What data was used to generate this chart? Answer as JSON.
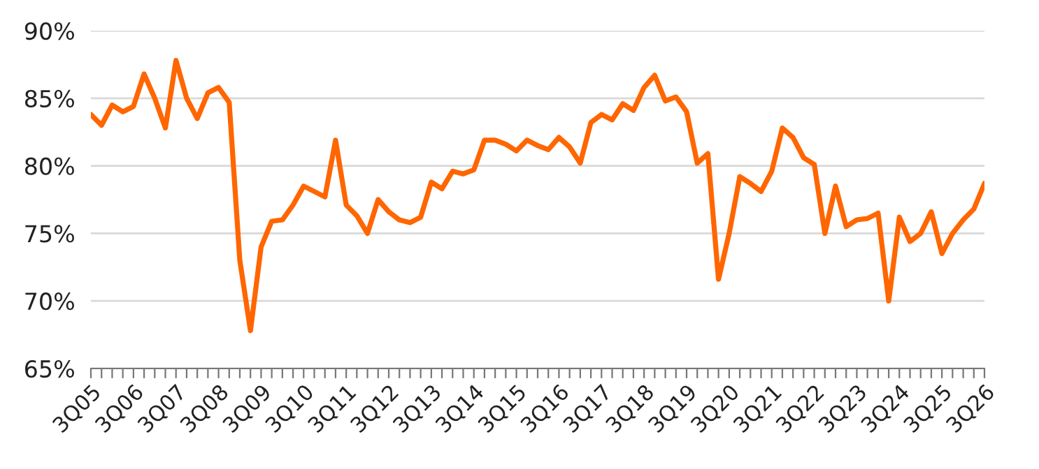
{
  "chart_data": {
    "type": "line",
    "categories": [
      "3Q05",
      null,
      null,
      null,
      "3Q06",
      null,
      null,
      null,
      "3Q07",
      null,
      null,
      null,
      "3Q08",
      null,
      null,
      null,
      "3Q09",
      null,
      null,
      null,
      "3Q10",
      null,
      null,
      null,
      "3Q11",
      null,
      null,
      null,
      "3Q12",
      null,
      null,
      null,
      "3Q13",
      null,
      null,
      null,
      "3Q14",
      null,
      null,
      null,
      "3Q15",
      null,
      null,
      null,
      "3Q16",
      null,
      null,
      null,
      "3Q17",
      null,
      null,
      null,
      "3Q18",
      null,
      null,
      null,
      "3Q19",
      null,
      null,
      null,
      "3Q20",
      null,
      null,
      null,
      "3Q21",
      null,
      null,
      null,
      "3Q22",
      null,
      null,
      null,
      "3Q23",
      null,
      null,
      null,
      "3Q24",
      null,
      null,
      null,
      "3Q25",
      null,
      null,
      null,
      "3Q26"
    ],
    "series": [
      {
        "color": "#ff6600",
        "values": [
          83.8,
          83.0,
          84.5,
          84.0,
          84.4,
          86.8,
          85.0,
          82.8,
          87.8,
          85.0,
          83.5,
          85.4,
          85.8,
          84.7,
          73.0,
          67.8,
          74.0,
          75.9,
          76.0,
          77.1,
          78.5,
          78.1,
          77.7,
          81.9,
          77.1,
          76.3,
          75.0,
          77.5,
          76.6,
          76.0,
          75.8,
          76.2,
          78.8,
          78.3,
          79.6,
          79.4,
          79.7,
          81.9,
          81.9,
          81.6,
          81.1,
          81.9,
          81.5,
          81.2,
          82.1,
          81.4,
          80.2,
          83.2,
          83.8,
          83.4,
          84.6,
          84.1,
          85.8,
          86.7,
          84.8,
          85.1,
          84.0,
          80.2,
          80.9,
          71.6,
          75.0,
          79.2,
          78.7,
          78.1,
          79.6,
          82.8,
          82.1,
          80.6,
          80.1,
          75.0,
          78.5,
          75.5,
          76.0,
          76.1,
          76.5,
          70.0,
          76.2,
          74.4,
          75.0,
          76.6,
          73.5,
          75.0,
          76.0,
          76.8,
          78.7
        ]
      }
    ],
    "ylim": [
      65,
      90
    ],
    "yticks": [
      {
        "value": 65,
        "label": "65%"
      },
      {
        "value": 70,
        "label": "70%"
      },
      {
        "value": 75,
        "label": "75%"
      },
      {
        "value": 80,
        "label": "80%"
      },
      {
        "value": 85,
        "label": "85%"
      },
      {
        "value": 90,
        "label": "90%"
      }
    ],
    "grid": "y",
    "marker": "none",
    "line_style": "solid"
  }
}
